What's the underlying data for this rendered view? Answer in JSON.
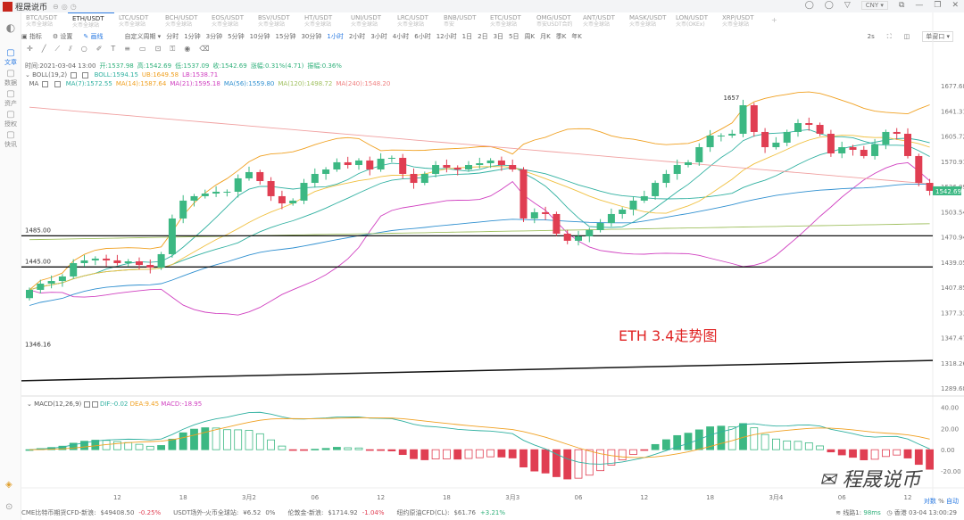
{
  "app": {
    "title": "程晟说币",
    "currency": "CNY"
  },
  "tabs": [
    {
      "label": "BTC/USDT",
      "sub": "火币全球站"
    },
    {
      "label": "ETH/USDT",
      "sub": "火币全球站",
      "active": true
    },
    {
      "label": "LTC/USDT",
      "sub": "火币全球站"
    },
    {
      "label": "BCH/USDT",
      "sub": "火币全球站"
    },
    {
      "label": "EOS/USDT",
      "sub": "火币全球站"
    },
    {
      "label": "BSV/USDT",
      "sub": "火币全球站"
    },
    {
      "label": "HT/USDT",
      "sub": "火币全球站"
    },
    {
      "label": "UNI/USDT",
      "sub": "火币全球站"
    },
    {
      "label": "LRC/USDT",
      "sub": "火币全球站"
    },
    {
      "label": "BNB/USDT",
      "sub": "币安"
    },
    {
      "label": "ETC/USDT",
      "sub": "火币全球站"
    },
    {
      "label": "OMG/USDT",
      "sub": "币安USDT合约"
    },
    {
      "label": "ANT/USDT",
      "sub": "火币全球站"
    },
    {
      "label": "MASK/USDT",
      "sub": "火币全球站"
    },
    {
      "label": "LON/USDT",
      "sub": "火币(OKEx)"
    },
    {
      "label": "XRP/USDT",
      "sub": "火币全球站"
    }
  ],
  "sidebar": [
    {
      "label": "文章",
      "icon": "article-icon",
      "active": true
    },
    {
      "label": "数据",
      "icon": "data-icon"
    },
    {
      "label": "资产",
      "icon": "asset-icon"
    },
    {
      "label": "授权",
      "icon": "auth-icon"
    },
    {
      "label": "快讯",
      "icon": "news-icon"
    }
  ],
  "toolbar": {
    "indicator": "指标",
    "settings": "设置",
    "draw": "画线",
    "custom": "自定义周期 ▾",
    "periods": [
      "分时",
      "1分钟",
      "3分钟",
      "5分钟",
      "10分钟",
      "15分钟",
      "30分钟",
      "1小时",
      "2小时",
      "3小时",
      "4小时",
      "6小时",
      "12小时",
      "1日",
      "2日",
      "3日",
      "5日",
      "周K",
      "月K",
      "季K",
      "年K"
    ],
    "active_period": "1小时",
    "refresh": "2s",
    "window": "单窗口 ▾"
  },
  "info": {
    "time": "时间:2021-03-04 13:00",
    "open": "开:1537.98",
    "high": "高:1542.69",
    "low": "低:1537.09",
    "close": "收:1542.69",
    "change": "涨幅:0.31%(4.71)",
    "amplitude": "振幅:0.36%",
    "boll_label": "BOLL(19,2)",
    "boll": "BOLL:1594.15",
    "ub": "UB:1649.58",
    "lb": "LB:1538.71",
    "ma_label": "MA",
    "ma": [
      {
        "t": "MA(7):1572.55",
        "c": "#2fb0a0"
      },
      {
        "t": "MA(14):1587.64",
        "c": "#f0a020"
      },
      {
        "t": "MA(21):1595.18",
        "c": "#d040c0"
      },
      {
        "t": "MA(56):1559.80",
        "c": "#3090d0"
      },
      {
        "t": "MA(120):1498.72",
        "c": "#a0c060"
      },
      {
        "t": "MA(240):1548.20",
        "c": "#f08080"
      }
    ],
    "macd_label": "MACD(12,26,9)",
    "dif": "DIF:-0.02",
    "dea": "DEA:9.45",
    "macd": "MACD:-18.95"
  },
  "chart_data": {
    "type": "candlestick",
    "symbol": "ETH/USDT",
    "interval": "1小时",
    "closes": [
      1415.6,
      1423.6,
      1427,
      1432.8,
      1449.9,
      1453.4,
      1455.7,
      1453.4,
      1449.9,
      1452.2,
      1447.6,
      1444.2,
      1461.4,
      1507.2,
      1530.1,
      1535.8,
      1539.2,
      1541.5,
      1541.5,
      1558.7,
      1566.7,
      1555.2,
      1535.8,
      1526.6,
      1530.1,
      1552.9,
      1564.4,
      1570.1,
      1579.3,
      1575.8,
      1581.6,
      1570.1,
      1583.9,
      1585,
      1564.4,
      1552.9,
      1564.4,
      1575.8,
      1572.4,
      1570.1,
      1575.8,
      1578.1,
      1581.6,
      1575.8,
      1570.1,
      1507.2,
      1515.2,
      1512.9,
      1487.7,
      1478.6,
      1484.3,
      1492.3,
      1501.4,
      1512.9,
      1518.6,
      1530.1,
      1535.8,
      1552.9,
      1564.4,
      1575.8,
      1579.3,
      1598.7,
      1613.6,
      1613.6,
      1615.9,
      1652.5,
      1618.2,
      1598.7,
      1604.5,
      1618.2,
      1629.6,
      1627.3,
      1615.9,
      1590.7,
      1598.7,
      1595.3,
      1587.3,
      1602.2,
      1618.2,
      1615.9,
      1587.3,
      1552.9,
      1542.69
    ],
    "first_open": 1405,
    "ylim": [
      1289.68,
      1677.68
    ],
    "y_ticks": [
      "1677.68",
      "1641.31",
      "1605.72",
      "1570.91",
      "1536.09",
      "1503.54",
      "1470.94",
      "1439.05",
      "1407.85",
      "1377.33",
      "1347.47",
      "1318.26",
      "1289.68"
    ],
    "x_ticks": [
      {
        "i": 8,
        "t": "12"
      },
      {
        "i": 14,
        "t": "18"
      },
      {
        "i": 20,
        "t": "3月2"
      },
      {
        "i": 26,
        "t": "06"
      },
      {
        "i": 32,
        "t": "12"
      },
      {
        "i": 38,
        "t": "18"
      },
      {
        "i": 44,
        "t": "3月3"
      },
      {
        "i": 50,
        "t": "06"
      },
      {
        "i": 56,
        "t": "12"
      },
      {
        "i": 62,
        "t": "18"
      },
      {
        "i": 68,
        "t": "3月4"
      },
      {
        "i": 74,
        "t": "06"
      },
      {
        "i": 80,
        "t": "12"
      }
    ],
    "last_price": "1542.69",
    "high_mark": "1657",
    "low_mark": "1346.16",
    "hlines": [
      {
        "price": 1485,
        "label": "1485.00"
      },
      {
        "price": 1445,
        "label": "1445.00"
      }
    ],
    "trendline": {
      "from": {
        "i": 0,
        "price": 1299
      },
      "to": {
        "i": 82,
        "price": 1325
      }
    },
    "macd_ticks": [
      "40.00",
      "20.00",
      "0.00",
      "-20.00"
    ],
    "macd_ylim": [
      -30,
      42
    ],
    "colors": {
      "up": "#3cb883",
      "down": "#e03e52"
    }
  },
  "annotation": "ETH 3.4走势图",
  "watermark": "程晟说币",
  "status": {
    "items": [
      {
        "name": "CME比特币期货CFD-新浪:",
        "value": "$49408.50",
        "chg": "-0.25%",
        "dir": "dn"
      },
      {
        "name": "USDT场外-火币全球站:",
        "value": "¥6.52",
        "chg": "0%",
        "dir": ""
      },
      {
        "name": "伦敦金-新浪:",
        "value": "$1714.92",
        "chg": "-1.04%",
        "dir": "dn"
      },
      {
        "name": "纽约原油CFD(CL):",
        "value": "$61.76",
        "chg": "+3.21%",
        "dir": "up"
      }
    ],
    "line": "线路1:",
    "latency": "98ms",
    "clock": "香港 03-04 13:00:29",
    "log": "对数",
    "pct": "%",
    "auto": "自动"
  }
}
